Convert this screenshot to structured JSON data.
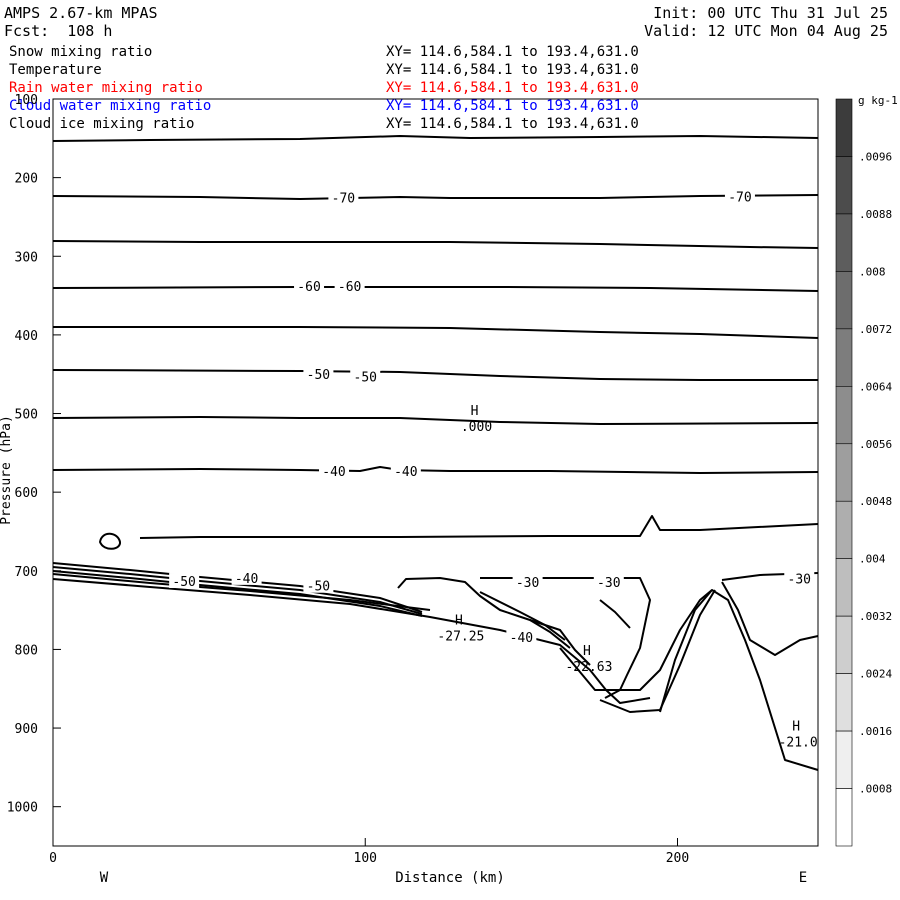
{
  "header": {
    "model": "AMPS 2.67-km MPAS",
    "forecast": "Fcst:  108 h",
    "init": "Init: 00 UTC Thu 31 Jul 25",
    "valid": "Valid: 12 UTC Mon 04 Aug 25"
  },
  "legend": [
    {
      "name": "Snow mixing ratio",
      "range": "XY= 114.6,584.1 to 193.4,631.0",
      "color": "#000000"
    },
    {
      "name": "Temperature",
      "range": "XY= 114.6,584.1 to 193.4,631.0",
      "color": "#000000"
    },
    {
      "name": "Rain water mixing ratio",
      "range": "XY= 114.6,584.1 to 193.4,631.0",
      "color": "#ff0000"
    },
    {
      "name": "Cloud water mixing ratio",
      "range": "XY= 114.6,584.1 to 193.4,631.0",
      "color": "#0000ff"
    },
    {
      "name": "Cloud ice mixing ratio",
      "range": "XY= 114.6,584.1 to 193.4,631.0",
      "color": "#000000"
    }
  ],
  "chart_data": {
    "type": "contour",
    "xlabel": "Distance (km)",
    "ylabel": "Pressure (hPa)",
    "xlim": [
      0,
      245
    ],
    "ylim": [
      1050,
      100
    ],
    "x_ticks": [
      0,
      100,
      200
    ],
    "y_ticks": [
      100,
      200,
      300,
      400,
      500,
      600,
      700,
      800,
      900,
      1000
    ],
    "x_end_labels": {
      "left": "W",
      "right": "E"
    },
    "contour_labels": [
      {
        "text": "-70",
        "x": 93,
        "p": 225
      },
      {
        "text": "-70",
        "x": 220,
        "p": 224
      },
      {
        "text": "-60",
        "x": 82,
        "p": 338
      },
      {
        "text": "-60",
        "x": 95,
        "p": 338
      },
      {
        "text": "-50",
        "x": 85,
        "p": 450
      },
      {
        "text": "-50",
        "x": 100,
        "p": 453
      },
      {
        "text": "-40",
        "x": 90,
        "p": 573
      },
      {
        "text": "-40",
        "x": 113,
        "p": 573
      },
      {
        "text": "-50",
        "x": 42,
        "p": 713
      },
      {
        "text": "-40",
        "x": 62,
        "p": 709
      },
      {
        "text": "-50",
        "x": 85,
        "p": 719
      },
      {
        "text": "-30",
        "x": 152,
        "p": 714
      },
      {
        "text": "-30",
        "x": 178,
        "p": 714
      },
      {
        "text": "-30",
        "x": 239,
        "p": 710
      },
      {
        "text": "-40",
        "x": 150,
        "p": 784
      }
    ],
    "extrema": [
      {
        "mark": "H",
        "value": ".000",
        "x": 135,
        "p": 502
      },
      {
        "mark": "H",
        "value": "-27.25",
        "x": 130,
        "p": 768
      },
      {
        "mark": "H",
        "value": "-22.63",
        "x": 171,
        "p": 807
      },
      {
        "mark": "H",
        "value": "-21.0",
        "x": 238,
        "p": 903
      }
    ],
    "colorbar": {
      "unit": "g kg-1",
      "ticks": [
        ".0096",
        ".0088",
        ".008",
        ".0072",
        ".0064",
        ".0056",
        ".0048",
        ".004",
        ".0032",
        ".0024",
        ".0016",
        ".0008"
      ]
    }
  }
}
